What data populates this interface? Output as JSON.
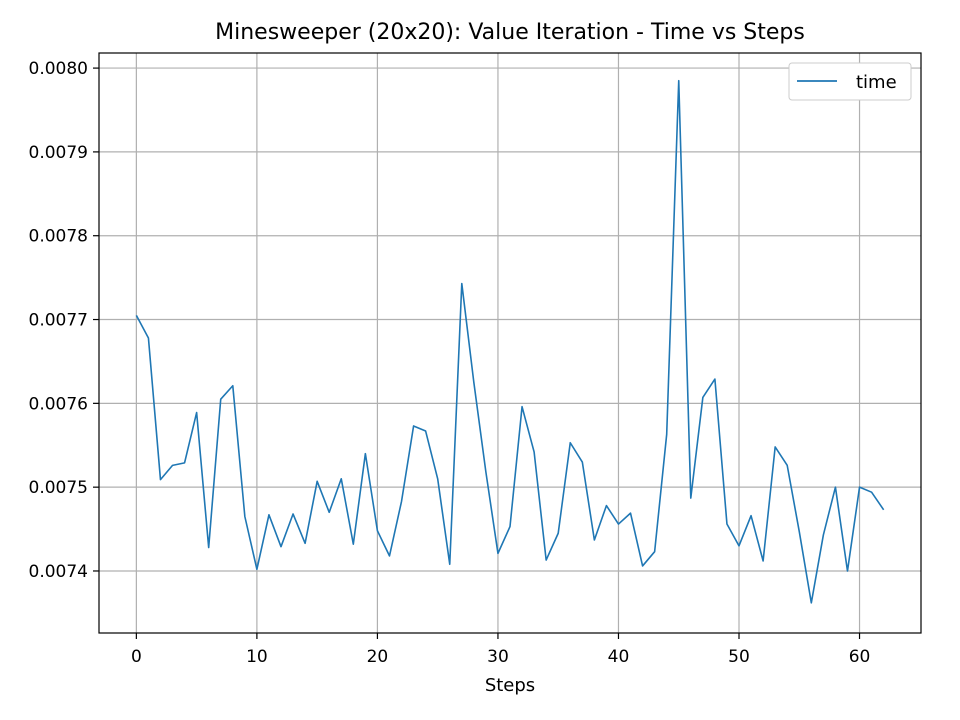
{
  "chart_data": {
    "type": "line",
    "title": "Minesweeper (20x20): Value Iteration - Time vs Steps",
    "xlabel": "Steps",
    "ylabel": "",
    "xlim": [
      -3.1,
      65.1
    ],
    "ylim": [
      0.007326,
      0.008018
    ],
    "xticks": [
      0,
      10,
      20,
      30,
      40,
      50,
      60
    ],
    "yticks": [
      0.0074,
      0.0075,
      0.0076,
      0.0077,
      0.0078,
      0.0079,
      0.008
    ],
    "ytick_labels": [
      "0.0074",
      "0.0075",
      "0.0076",
      "0.0077",
      "0.0078",
      "0.0079",
      "0.0080"
    ],
    "grid": true,
    "legend": "top-right",
    "series": [
      {
        "name": "time",
        "color": "#1f77b4",
        "x": [
          0,
          1,
          2,
          3,
          4,
          5,
          6,
          7,
          8,
          9,
          10,
          11,
          12,
          13,
          14,
          15,
          16,
          17,
          18,
          19,
          20,
          21,
          22,
          23,
          24,
          25,
          26,
          27,
          28,
          29,
          30,
          31,
          32,
          33,
          34,
          35,
          36,
          37,
          38,
          39,
          40,
          41,
          42,
          43,
          44,
          45,
          46,
          47,
          48,
          49,
          50,
          51,
          52,
          53,
          54,
          55,
          56,
          57,
          58,
          59,
          60,
          61,
          62
        ],
        "values": [
          0.007705,
          0.007678,
          0.007509,
          0.007526,
          0.007529,
          0.007589,
          0.007428,
          0.007605,
          0.007621,
          0.007465,
          0.007402,
          0.007467,
          0.007429,
          0.007468,
          0.007433,
          0.007507,
          0.00747,
          0.00751,
          0.007432,
          0.00754,
          0.007448,
          0.007418,
          0.007483,
          0.007573,
          0.007567,
          0.00751,
          0.007408,
          0.007743,
          0.007625,
          0.007518,
          0.007421,
          0.007453,
          0.007596,
          0.007542,
          0.007413,
          0.007445,
          0.007553,
          0.00753,
          0.007437,
          0.007478,
          0.007456,
          0.007469,
          0.007406,
          0.007423,
          0.007563,
          0.007985,
          0.007487,
          0.007607,
          0.007629,
          0.007456,
          0.00743,
          0.007466,
          0.007412,
          0.007548,
          0.007526,
          0.007447,
          0.007362,
          0.007443,
          0.0075,
          0.0074,
          0.0075,
          0.007494,
          0.007473
        ]
      }
    ]
  }
}
